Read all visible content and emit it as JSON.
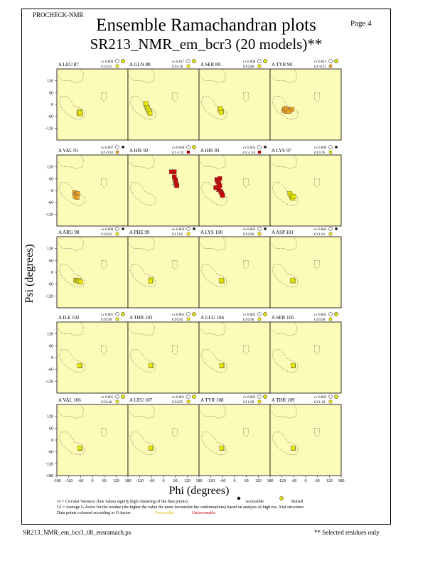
{
  "header": {
    "program": "PROCHECK-NMR",
    "page": "Page  4",
    "title": "Ensemble Ramachandran plots",
    "subtitle": "SR213_NMR_em_bcr3 (20 models)**"
  },
  "colors": {
    "panel_bg": "#fdfbb8",
    "contour": "#333333",
    "favourable": "#e8e800",
    "unfavourable": "#cc0000",
    "mid": "#f0a020",
    "legend_fav_text": "#d8c000",
    "legend_unfav_text": "#cc0000"
  },
  "legend": {
    "cv_text": "cv = Circular Variance (low values signify high clustering of the data points).",
    "accessible_label": "Accessible",
    "buried_label": "Buried",
    "gf_text": "Gf = Average G-factor for the residue (the higher the value the more favourable the conformations) based on analysis of high-res. Xtal structures",
    "colour_text": "Data points coloured according to G-factor:",
    "favourable_label": "Favourable",
    "unfavourable_label": "Unfavourable"
  },
  "footer": {
    "filename": "SR213_NMR_em_bcr3_08_ensramach.ps",
    "note": "** Selected residues only"
  },
  "chart_data": {
    "type": "scatter",
    "xlabel": "Phi (degrees)",
    "ylabel": "Psi (degrees)",
    "xlim": [
      -180,
      180
    ],
    "ylim": [
      -180,
      180
    ],
    "xticks": [
      -180,
      -120,
      -60,
      0,
      60,
      120,
      180
    ],
    "yticks": [
      120,
      60,
      0,
      -60,
      -120
    ],
    "yticks_bottom": [
      120,
      60,
      0,
      -60,
      -120,
      -180
    ],
    "panels": [
      {
        "residue": "A LEU 87",
        "cv": "cv 0.003",
        "gf": "Gf 0.63",
        "access": "buried",
        "points": [
          [
            -65,
            -42
          ],
          [
            -62,
            -38
          ],
          [
            -68,
            -45
          ],
          [
            -60,
            -48
          ],
          [
            -66,
            -36
          ],
          [
            -63,
            -41
          ]
        ]
      },
      {
        "residue": "A GLN 88",
        "cv": "cv 0.017",
        "gf": "Gf 0.18",
        "access": "buried",
        "points": [
          [
            -90,
            0
          ],
          [
            -85,
            -10
          ],
          [
            -80,
            -20
          ],
          [
            -75,
            -30
          ],
          [
            -70,
            -40
          ],
          [
            -88,
            5
          ],
          [
            -82,
            -15
          ],
          [
            -78,
            -25
          ],
          [
            -72,
            -35
          ],
          [
            -68,
            -45
          ]
        ]
      },
      {
        "residue": "A SER 89",
        "cv": "cv 0.008",
        "gf": "Gf 0.86",
        "access": "buried",
        "points": [
          [
            -70,
            -30
          ],
          [
            -65,
            -35
          ],
          [
            -75,
            -25
          ],
          [
            -68,
            -40
          ],
          [
            -72,
            -20
          ]
        ]
      },
      {
        "residue": "A TYR 90",
        "cv": "cv 0.015",
        "gf": "Gf -0.31",
        "access": "buried",
        "points": [
          [
            -110,
            -30
          ],
          [
            -100,
            -35
          ],
          [
            -90,
            -25
          ],
          [
            -80,
            -30
          ],
          [
            -70,
            -25
          ],
          [
            -105,
            -20
          ],
          [
            -95,
            -28
          ],
          [
            -85,
            -35
          ]
        ]
      },
      {
        "residue": "A VAL 91",
        "cv": "cv 0.007",
        "gf": "Gf -0.93",
        "access": "accessible",
        "points": [
          [
            -90,
            -10
          ],
          [
            -85,
            -20
          ],
          [
            -80,
            -25
          ],
          [
            -75,
            -15
          ],
          [
            -88,
            -30
          ],
          [
            -78,
            -35
          ]
        ]
      },
      {
        "residue": "A HIS 92",
        "cv": "cv 0.030",
        "gf": "Gf -1.21",
        "access": "buried",
        "points": [
          [
            40,
            95
          ],
          [
            55,
            95
          ],
          [
            55,
            70
          ],
          [
            60,
            55
          ],
          [
            62,
            40
          ],
          [
            65,
            30
          ],
          [
            68,
            25
          ]
        ]
      },
      {
        "residue": "A HIS 93",
        "cv": "cv 0.035",
        "gf": "Gf -1.14",
        "access": "accessible",
        "points": [
          [
            -90,
            55
          ],
          [
            -85,
            45
          ],
          [
            -80,
            35
          ],
          [
            -75,
            25
          ],
          [
            -95,
            15
          ],
          [
            -70,
            -5
          ],
          [
            -65,
            -15
          ],
          [
            -60,
            -25
          ],
          [
            -75,
            60
          ],
          [
            -80,
            5
          ]
        ]
      },
      {
        "residue": "A LYS 97",
        "cv": "cv 0.009",
        "gf": "Gf 0.76",
        "access": "accessible",
        "points": [
          [
            -80,
            -15
          ],
          [
            -75,
            -25
          ],
          [
            -70,
            -35
          ],
          [
            -65,
            -40
          ],
          [
            -60,
            -30
          ]
        ]
      },
      {
        "residue": "A ARG 98",
        "cv": "cv 0.009",
        "gf": "Gf 0.62",
        "access": "accessible",
        "points": [
          [
            -85,
            -40
          ],
          [
            -80,
            -42
          ],
          [
            -75,
            -45
          ],
          [
            -70,
            -40
          ],
          [
            -65,
            -45
          ],
          [
            -60,
            -50
          ]
        ]
      },
      {
        "residue": "A PHE 99",
        "cv": "cv 0.003",
        "gf": "Gf 1.05",
        "access": "accessible",
        "points": [
          [
            -65,
            -42
          ],
          [
            -62,
            -38
          ],
          [
            -66,
            -46
          ]
        ]
      },
      {
        "residue": "A LYS 100",
        "cv": "cv 0.003",
        "gf": "Gf 0.96",
        "access": "accessible",
        "points": [
          [
            -65,
            -42
          ],
          [
            -62,
            -45
          ],
          [
            -68,
            -40
          ]
        ]
      },
      {
        "residue": "A ASP 101",
        "cv": "cv 0.003",
        "gf": "Gf 1.01",
        "access": "accessible",
        "points": [
          [
            -65,
            -42
          ],
          [
            -62,
            -44
          ],
          [
            -67,
            -40
          ]
        ]
      },
      {
        "residue": "A ILE 102",
        "cv": "cv 0.001",
        "gf": "Gf 0.90",
        "access": "buried",
        "points": [
          [
            -62,
            -42
          ],
          [
            -65,
            -40
          ]
        ]
      },
      {
        "residue": "A THR 103",
        "cv": "cv 0.001",
        "gf": "Gf 0.95",
        "access": "buried",
        "points": [
          [
            -62,
            -42
          ],
          [
            -65,
            -40
          ]
        ]
      },
      {
        "residue": "A GLU 104",
        "cv": "cv 0.002",
        "gf": "Gf 0.90",
        "access": "buried",
        "points": [
          [
            -62,
            -42
          ],
          [
            -66,
            -40
          ]
        ]
      },
      {
        "residue": "A SER 105",
        "cv": "cv 0.001",
        "gf": "Gf 0.99",
        "access": "buried",
        "points": [
          [
            -62,
            -42
          ],
          [
            -64,
            -40
          ]
        ]
      },
      {
        "residue": "A VAL 106",
        "cv": "cv 0.001",
        "gf": "Gf 0.46",
        "access": "buried",
        "points": [
          [
            -62,
            -42
          ],
          [
            -64,
            -40
          ]
        ]
      },
      {
        "residue": "A LEU 107",
        "cv": "cv 0.001",
        "gf": "Gf 0.95",
        "access": "buried",
        "points": [
          [
            -62,
            -42
          ],
          [
            -65,
            -40
          ]
        ]
      },
      {
        "residue": "A TYR 108",
        "cv": "cv 0.002",
        "gf": "Gf 1.09",
        "access": "buried",
        "points": [
          [
            -62,
            -42
          ],
          [
            -66,
            -40
          ]
        ]
      },
      {
        "residue": "A THR 109",
        "cv": "cv 0.002",
        "gf": "Gf 1.10",
        "access": "buried",
        "points": [
          [
            -62,
            -42
          ],
          [
            -64,
            -40
          ]
        ]
      }
    ]
  }
}
